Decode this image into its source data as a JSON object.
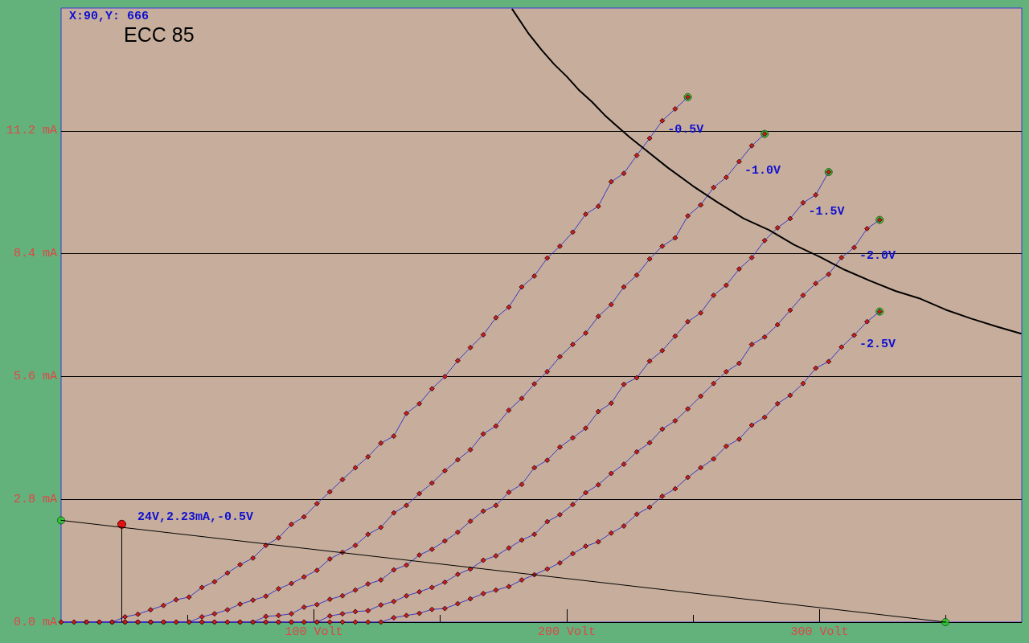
{
  "chart_data": {
    "type": "line",
    "title": "ECC 85",
    "annotations": [
      "X:90,Y: 666",
      {
        "text": "24V,2.23mA,-0.5V",
        "x": 24,
        "y": 2.23
      }
    ],
    "x": [
      0,
      5.1,
      10.1,
      15.2,
      20.2,
      25.3,
      30.4,
      35.4,
      40.5,
      45.5,
      50.6,
      55.7,
      60.7,
      65.8,
      70.8,
      75.9,
      81,
      86,
      91.1,
      96.1,
      101.2,
      106.3,
      111.3,
      116.4,
      121.4,
      126.5,
      131.6,
      136.6,
      141.7,
      146.7,
      151.8,
      156.9,
      161.9,
      167,
      172,
      177.1,
      182.2,
      187.2,
      192.3,
      197.3,
      202.4,
      207.5,
      212.5,
      217.6,
      222.6,
      227.7,
      232.8,
      237.8,
      242.9,
      247.9,
      253,
      258.1,
      263.1,
      268.2,
      273.2,
      278.3,
      283.4,
      288.4,
      293.5,
      298.5,
      303.6,
      308.7,
      313.7,
      318.8,
      323.8
    ],
    "xlim": [
      0,
      380
    ],
    "xticks": [
      {
        "value": 50,
        "label": null
      },
      {
        "value": 100,
        "label": "100 Volt"
      },
      {
        "value": 150,
        "label": null
      },
      {
        "value": 200,
        "label": "200 Volt"
      },
      {
        "value": 250,
        "label": null
      },
      {
        "value": 300,
        "label": "300 Volt"
      },
      {
        "value": 350,
        "label": null
      }
    ],
    "ylim": [
      0,
      14
    ],
    "yticks": [
      {
        "value": 0,
        "label": "0.0 mA"
      },
      {
        "value": 2.8,
        "label": "2.8 mA"
      },
      {
        "value": 5.6,
        "label": "5.6 mA"
      },
      {
        "value": 8.4,
        "label": "8.4 mA"
      },
      {
        "value": 11.2,
        "label": "11.2 mA"
      }
    ],
    "grid": "y",
    "marker": "diamond",
    "line_style": "solid",
    "series": [
      {
        "name": "-0.5V",
        "color": "#c81e1e",
        "values": [
          0,
          0,
          0,
          0,
          0,
          0.12,
          0.18,
          0.28,
          0.38,
          0.51,
          0.57,
          0.79,
          0.92,
          1.12,
          1.31,
          1.46,
          1.75,
          1.92,
          2.23,
          2.4,
          2.7,
          2.97,
          3.25,
          3.52,
          3.77,
          4.08,
          4.24,
          4.76,
          4.98,
          5.32,
          5.6,
          5.96,
          6.26,
          6.55,
          6.94,
          7.18,
          7.64,
          7.89,
          8.3,
          8.57,
          8.89,
          9.3,
          9.48,
          10.04,
          10.23,
          10.64,
          11.03,
          11.43,
          11.7,
          11.97,
          null,
          null,
          null,
          null,
          null,
          null,
          null,
          null,
          null,
          null,
          null,
          null,
          null,
          null,
          null
        ]
      },
      {
        "name": "-1.0V",
        "color": "#c81e1e",
        "values": [
          0,
          0,
          0,
          0,
          0,
          0,
          0,
          0,
          0,
          0,
          0,
          0.12,
          0.19,
          0.28,
          0.41,
          0.5,
          0.59,
          0.76,
          0.88,
          1.03,
          1.18,
          1.44,
          1.59,
          1.75,
          2.0,
          2.16,
          2.49,
          2.66,
          2.93,
          3.17,
          3.45,
          3.7,
          3.93,
          4.29,
          4.47,
          4.83,
          5.1,
          5.43,
          5.71,
          6.05,
          6.33,
          6.59,
          6.97,
          7.24,
          7.64,
          7.91,
          8.28,
          8.57,
          8.76,
          9.26,
          9.51,
          9.91,
          10.14,
          10.5,
          10.86,
          11.13,
          null,
          null,
          null,
          null,
          null,
          null,
          null,
          null,
          null
        ]
      },
      {
        "name": "-1.5V",
        "color": "#c81e1e",
        "values": [
          0,
          0,
          0,
          0,
          0,
          0,
          0,
          0,
          0,
          0,
          0,
          0,
          0,
          0,
          0,
          0,
          0.13,
          0.15,
          0.19,
          0.34,
          0.4,
          0.52,
          0.6,
          0.73,
          0.87,
          0.96,
          1.19,
          1.3,
          1.53,
          1.66,
          1.85,
          2.05,
          2.3,
          2.53,
          2.66,
          2.96,
          3.14,
          3.52,
          3.69,
          3.99,
          4.2,
          4.42,
          4.8,
          4.99,
          5.42,
          5.57,
          5.95,
          6.19,
          6.52,
          6.85,
          7.05,
          7.45,
          7.68,
          8.05,
          8.31,
          8.7,
          8.99,
          9.2,
          9.56,
          9.74,
          10.26,
          null,
          null,
          null,
          null
        ]
      },
      {
        "name": "-2.0V",
        "color": "#c81e1e",
        "values": [
          0,
          0,
          0,
          0,
          0,
          0,
          0,
          0,
          0,
          0,
          0,
          0,
          0,
          0,
          0,
          0,
          0,
          0,
          0,
          0,
          0,
          0.14,
          0.19,
          0.24,
          0.26,
          0.39,
          0.47,
          0.6,
          0.69,
          0.79,
          0.91,
          1.09,
          1.21,
          1.41,
          1.51,
          1.69,
          1.87,
          2.0,
          2.29,
          2.45,
          2.68,
          2.95,
          3.13,
          3.39,
          3.6,
          3.88,
          4.09,
          4.4,
          4.59,
          4.86,
          5.15,
          5.44,
          5.71,
          5.9,
          6.33,
          6.5,
          6.78,
          7.11,
          7.45,
          7.72,
          7.93,
          8.31,
          8.54,
          8.97,
          9.17
        ]
      },
      {
        "name": "-2.5V",
        "color": "#c81e1e",
        "values": [
          0,
          0,
          0,
          0,
          0,
          0,
          0,
          0,
          0,
          0,
          0,
          0,
          0,
          0,
          0,
          0,
          0,
          0,
          0,
          0,
          0,
          0,
          0,
          0,
          0,
          0,
          0.1,
          0.15,
          0.2,
          0.29,
          0.31,
          0.42,
          0.53,
          0.65,
          0.73,
          0.81,
          0.96,
          1.08,
          1.21,
          1.35,
          1.56,
          1.73,
          1.83,
          2.03,
          2.19,
          2.46,
          2.62,
          2.87,
          3.04,
          3.3,
          3.52,
          3.72,
          4.01,
          4.17,
          4.49,
          4.67,
          4.98,
          5.17,
          5.44,
          5.79,
          5.94,
          6.27,
          6.54,
          6.85,
          7.08
        ]
      },
      {
        "color": "#000000",
        "x": [
          0,
          349.8
        ],
        "values": [
          2.32,
          0
        ],
        "marker": "none"
      },
      {
        "color": "#000000",
        "x": [
          178.5,
          185,
          190,
          195,
          200,
          205,
          210,
          215,
          220,
          225,
          230,
          240,
          250,
          260,
          270,
          280,
          290,
          300,
          310,
          320,
          330,
          340,
          350,
          360,
          370,
          379.6
        ],
        "values": [
          13.97,
          13.41,
          13.05,
          12.72,
          12.44,
          12.12,
          11.86,
          11.56,
          11.3,
          11.05,
          10.82,
          10.36,
          9.94,
          9.56,
          9.2,
          8.94,
          8.6,
          8.33,
          8.03,
          7.78,
          7.55,
          7.37,
          7.12,
          6.92,
          6.74,
          6.58
        ],
        "marker": "none"
      },
      {
        "type": "scatter",
        "color": "#22cc22",
        "marker": "circle",
        "x": [
          247.9,
          278.3,
          303.6,
          323.8,
          323.8,
          0,
          349.8
        ],
        "values": [
          11.97,
          11.13,
          10.26,
          9.17,
          7.08,
          2.32,
          0
        ]
      }
    ]
  }
}
